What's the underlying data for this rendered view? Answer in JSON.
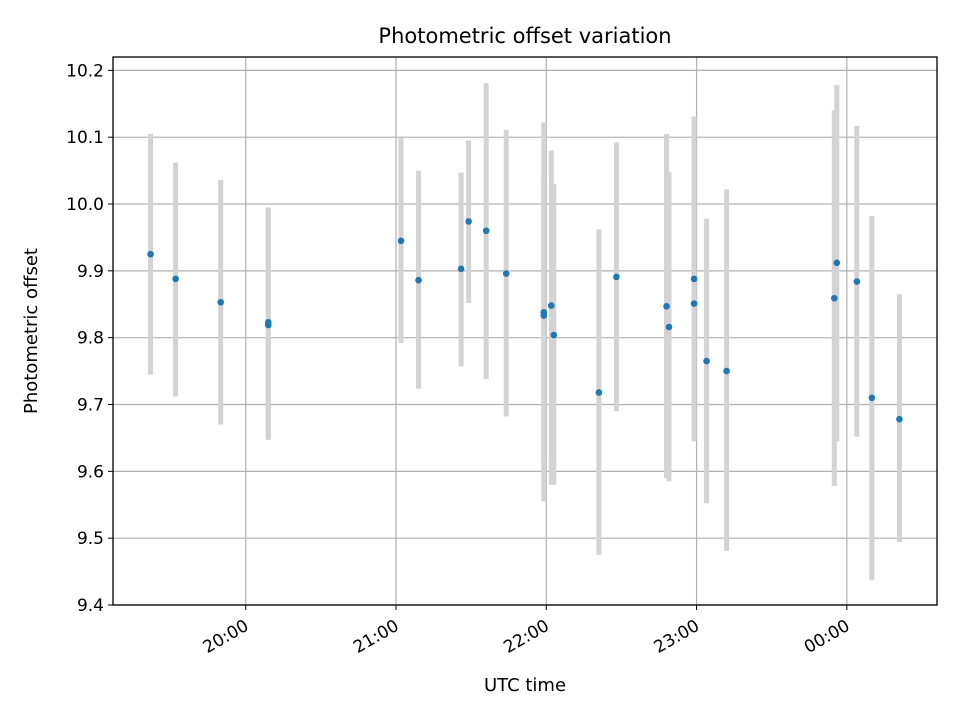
{
  "chart_data": {
    "type": "scatter",
    "title": "Photometric offset variation",
    "xlabel": "UTC time",
    "ylabel": "Photometric offset",
    "grid": true,
    "legend": "none",
    "ylim": [
      9.4,
      10.22
    ],
    "xlim": [
      "19:07",
      "00:36"
    ],
    "x_ticks": [
      "20:00",
      "21:00",
      "22:00",
      "23:00",
      "00:00"
    ],
    "y_ticks": [
      "9.4",
      "9.5",
      "9.6",
      "9.7",
      "9.8",
      "9.9",
      "10.0",
      "10.1",
      "10.2"
    ],
    "colors": {
      "points": "#1f77b4",
      "errorbars": "#d3d3d3",
      "grid": "#b0b0b0"
    },
    "series": [
      {
        "x": [
          "19:22",
          "19:32",
          "19:50",
          "20:09",
          "20:09",
          "21:02",
          "21:09",
          "21:26",
          "21:29",
          "21:36",
          "21:44",
          "21:59",
          "21:59",
          "22:02",
          "22:03",
          "22:21",
          "22:28",
          "22:48",
          "22:49",
          "22:59",
          "22:59",
          "23:04",
          "23:12",
          "23:55",
          "23:56",
          "00:04",
          "00:10",
          "00:21"
        ],
        "y": [
          9.925,
          9.888,
          9.853,
          9.823,
          9.819,
          9.945,
          9.886,
          9.903,
          9.974,
          9.96,
          9.896,
          9.838,
          9.833,
          9.848,
          9.804,
          9.718,
          9.891,
          9.847,
          9.816,
          9.888,
          9.851,
          9.765,
          9.75,
          9.859,
          9.912,
          9.884,
          9.71,
          9.678
        ],
        "yerr_low": [
          9.745,
          9.712,
          9.67,
          9.65,
          9.647,
          9.792,
          9.724,
          9.757,
          9.852,
          9.738,
          9.682,
          9.555,
          9.62,
          9.58,
          9.58,
          9.475,
          9.69,
          9.59,
          9.585,
          9.645,
          9.65,
          9.552,
          9.481,
          9.578,
          9.645,
          9.652,
          9.437,
          9.494
        ],
        "yerr_high": [
          10.105,
          10.062,
          10.036,
          9.995,
          9.992,
          10.1,
          10.05,
          10.047,
          10.095,
          10.181,
          10.111,
          10.122,
          10.041,
          10.08,
          10.03,
          9.962,
          10.092,
          10.105,
          10.048,
          10.131,
          10.05,
          9.978,
          10.022,
          10.14,
          10.178,
          10.117,
          9.982,
          9.865
        ]
      }
    ]
  }
}
